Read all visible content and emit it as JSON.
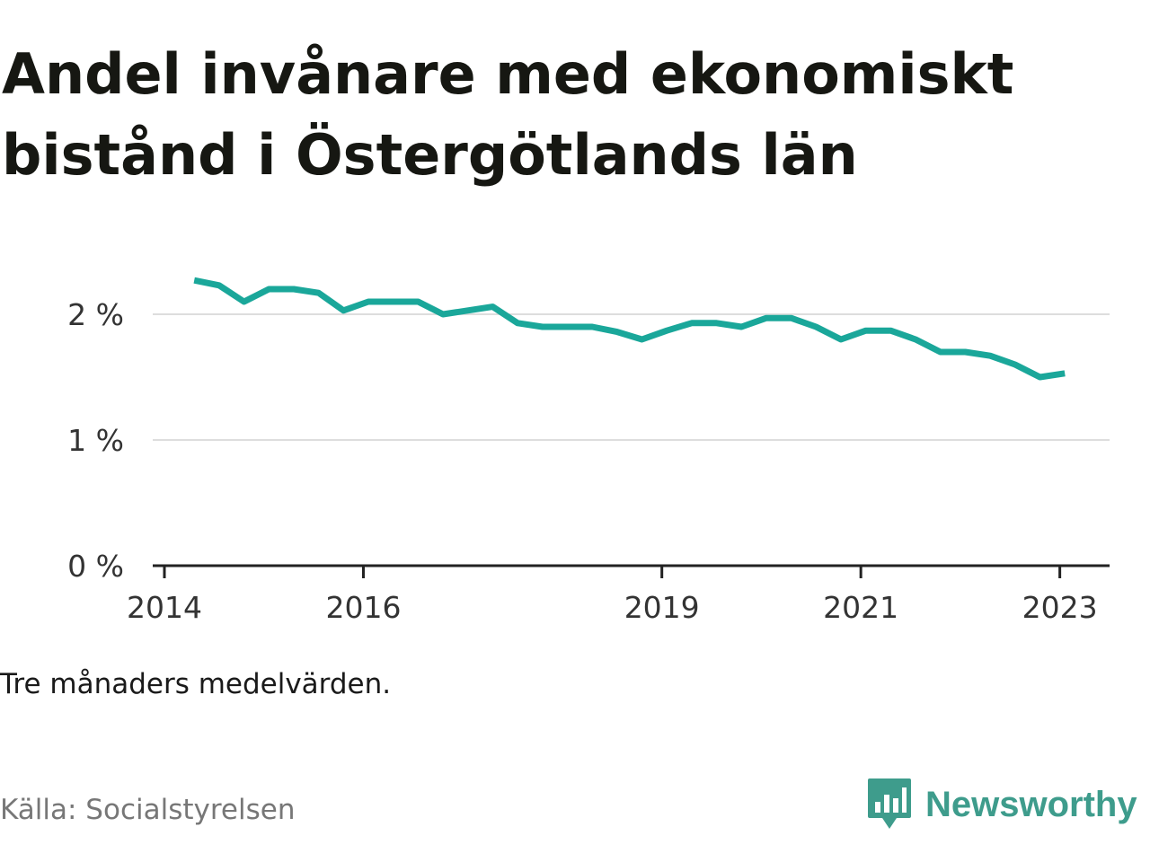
{
  "header": {
    "title": "Andel invånare med ekonomiskt bistånd i Östergötlands län"
  },
  "footer": {
    "note": "Tre månaders medelvärden.",
    "source": "Källa: Socialstyrelsen",
    "brand": "Newsworthy"
  },
  "colors": {
    "line": "#1aa79a",
    "grid": "#dddddd",
    "axis": "#222222",
    "brand": "#3e9c8c"
  },
  "chart_data": {
    "type": "line",
    "title": "Andel invånare med ekonomiskt bistånd i Östergötlands län",
    "xlabel": "",
    "ylabel": "",
    "ylim": [
      0,
      2.5
    ],
    "xlim": [
      2014.0,
      2023.5
    ],
    "y_ticks": [
      {
        "value": 0,
        "label": "0 %"
      },
      {
        "value": 1,
        "label": "1 %"
      },
      {
        "value": 2,
        "label": "2 %"
      }
    ],
    "x_ticks": [
      {
        "value": 2014.0,
        "label": "2014"
      },
      {
        "value": 2016.0,
        "label": "2016"
      },
      {
        "value": 2019.0,
        "label": "2019"
      },
      {
        "value": 2021.0,
        "label": "2021"
      },
      {
        "value": 2023.0,
        "label": "2023"
      }
    ],
    "grid": true,
    "series": [
      {
        "name": "",
        "x": [
          2014.3,
          2014.55,
          2014.8,
          2015.05,
          2015.3,
          2015.55,
          2015.8,
          2016.05,
          2016.3,
          2016.55,
          2016.8,
          2017.05,
          2017.3,
          2017.55,
          2017.8,
          2018.05,
          2018.3,
          2018.55,
          2018.8,
          2019.05,
          2019.3,
          2019.55,
          2019.8,
          2020.05,
          2020.3,
          2020.55,
          2020.8,
          2021.05,
          2021.3,
          2021.55,
          2021.8,
          2022.05,
          2022.3,
          2022.55,
          2022.8,
          2023.05
        ],
        "values": [
          2.27,
          2.23,
          2.1,
          2.2,
          2.2,
          2.17,
          2.03,
          2.1,
          2.1,
          2.1,
          2.0,
          2.03,
          2.06,
          1.93,
          1.9,
          1.9,
          1.9,
          1.86,
          1.8,
          1.87,
          1.93,
          1.93,
          1.9,
          1.97,
          1.97,
          1.9,
          1.8,
          1.87,
          1.87,
          1.8,
          1.7,
          1.7,
          1.67,
          1.6,
          1.5,
          1.53
        ]
      }
    ]
  }
}
